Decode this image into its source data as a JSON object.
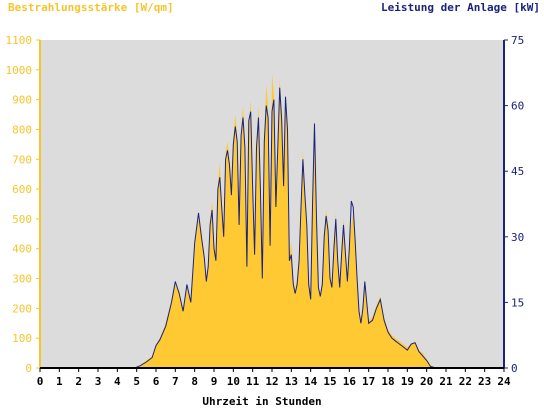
{
  "chart_data": {
    "type": "area",
    "title_left": "Bestrahlungsstärke [W/qm]",
    "title_right": "Leistung der Anlage [kW]",
    "xlabel": "Uhrzeit in Stunden",
    "xlim": [
      0,
      24
    ],
    "ylim_left": [
      0,
      1100
    ],
    "ylim_right": [
      0,
      75
    ],
    "x_ticks": [
      0,
      1,
      2,
      3,
      4,
      5,
      6,
      7,
      8,
      9,
      10,
      11,
      12,
      13,
      14,
      15,
      16,
      17,
      18,
      19,
      20,
      21,
      22,
      23,
      24
    ],
    "y_ticks_left": [
      0,
      100,
      200,
      300,
      400,
      500,
      600,
      700,
      800,
      900,
      1000,
      1100
    ],
    "y_ticks_right": [
      0,
      15,
      30,
      45,
      60,
      75
    ],
    "grid": false,
    "colors": {
      "plot_bg": "#dcdcdc",
      "area_fill": "#ffc933",
      "line": "#1a237e",
      "left_axis": "#f7c52b",
      "right_axis": "#1a237e"
    },
    "series": [
      {
        "axis": "left",
        "style": "area",
        "x": [
          0,
          4.9,
          5.2,
          5.5,
          5.8,
          6.0,
          6.2,
          6.5,
          6.8,
          7.0,
          7.2,
          7.4,
          7.6,
          7.8,
          8.0,
          8.1,
          8.2,
          8.35,
          8.5,
          8.6,
          8.7,
          8.8,
          8.9,
          9.0,
          9.1,
          9.2,
          9.3,
          9.4,
          9.5,
          9.6,
          9.7,
          9.8,
          9.9,
          10.0,
          10.1,
          10.2,
          10.3,
          10.4,
          10.5,
          10.6,
          10.7,
          10.8,
          10.9,
          11.0,
          11.1,
          11.2,
          11.3,
          11.4,
          11.5,
          11.6,
          11.7,
          11.8,
          11.9,
          12.0,
          12.1,
          12.2,
          12.3,
          12.4,
          12.5,
          12.6,
          12.7,
          12.8,
          12.9,
          13.0,
          13.1,
          13.2,
          13.3,
          13.4,
          13.5,
          13.6,
          13.7,
          13.8,
          13.9,
          14.0,
          14.1,
          14.2,
          14.3,
          14.4,
          14.5,
          14.6,
          14.7,
          14.8,
          14.9,
          15.0,
          15.1,
          15.2,
          15.3,
          15.4,
          15.5,
          15.6,
          15.7,
          15.8,
          15.9,
          16.0,
          16.1,
          16.2,
          16.3,
          16.4,
          16.5,
          16.6,
          16.7,
          16.8,
          17.0,
          17.2,
          17.4,
          17.6,
          17.8,
          18.0,
          18.2,
          18.4,
          18.6,
          18.8,
          19.0,
          19.2,
          19.4,
          19.6,
          19.8,
          20.0,
          20.2,
          20.5,
          24
        ],
        "values": [
          0,
          0,
          10,
          25,
          40,
          80,
          100,
          150,
          230,
          280,
          260,
          200,
          270,
          230,
          390,
          480,
          500,
          460,
          380,
          300,
          350,
          500,
          560,
          420,
          380,
          620,
          690,
          560,
          450,
          720,
          760,
          700,
          600,
          770,
          850,
          780,
          500,
          800,
          880,
          760,
          350,
          810,
          900,
          620,
          400,
          760,
          880,
          620,
          320,
          780,
          950,
          880,
          430,
          990,
          920,
          560,
          760,
          970,
          870,
          640,
          920,
          820,
          380,
          420,
          300,
          260,
          300,
          380,
          560,
          730,
          600,
          500,
          300,
          240,
          600,
          830,
          520,
          280,
          250,
          300,
          450,
          530,
          480,
          320,
          280,
          420,
          520,
          380,
          280,
          400,
          500,
          400,
          300,
          420,
          480,
          520,
          450,
          320,
          200,
          160,
          220,
          300,
          160,
          170,
          210,
          240,
          170,
          130,
          110,
          100,
          90,
          80,
          70,
          80,
          90,
          60,
          50,
          30,
          10,
          0,
          0
        ]
      },
      {
        "axis": "left",
        "style": "line",
        "x": [
          0,
          4.9,
          5.2,
          5.5,
          5.8,
          6.0,
          6.2,
          6.5,
          6.8,
          7.0,
          7.2,
          7.4,
          7.6,
          7.8,
          8.0,
          8.1,
          8.2,
          8.35,
          8.5,
          8.6,
          8.7,
          8.8,
          8.9,
          9.0,
          9.1,
          9.2,
          9.3,
          9.4,
          9.5,
          9.6,
          9.7,
          9.8,
          9.9,
          10.0,
          10.1,
          10.2,
          10.3,
          10.4,
          10.5,
          10.6,
          10.7,
          10.8,
          10.9,
          11.0,
          11.1,
          11.2,
          11.3,
          11.4,
          11.5,
          11.6,
          11.7,
          11.8,
          11.9,
          12.0,
          12.1,
          12.2,
          12.3,
          12.4,
          12.5,
          12.6,
          12.7,
          12.8,
          12.9,
          13.0,
          13.1,
          13.2,
          13.3,
          13.4,
          13.5,
          13.6,
          13.7,
          13.8,
          13.9,
          14.0,
          14.1,
          14.2,
          14.3,
          14.4,
          14.5,
          14.6,
          14.7,
          14.8,
          14.9,
          15.0,
          15.1,
          15.2,
          15.3,
          15.4,
          15.5,
          15.6,
          15.7,
          15.8,
          15.9,
          16.0,
          16.1,
          16.2,
          16.3,
          16.4,
          16.5,
          16.6,
          16.7,
          16.8,
          17.0,
          17.2,
          17.4,
          17.6,
          17.8,
          18.0,
          18.2,
          18.4,
          18.6,
          18.8,
          19.0,
          19.2,
          19.4,
          19.6,
          19.8,
          20.0,
          20.2,
          20.5,
          24
        ],
        "values": [
          0,
          0,
          8,
          20,
          35,
          75,
          95,
          140,
          220,
          290,
          250,
          190,
          280,
          220,
          420,
          470,
          520,
          440,
          370,
          290,
          340,
          480,
          530,
          400,
          360,
          600,
          640,
          540,
          440,
          700,
          730,
          680,
          580,
          750,
          810,
          760,
          480,
          780,
          840,
          740,
          340,
          830,
          860,
          600,
          380,
          740,
          840,
          600,
          300,
          760,
          880,
          840,
          410,
          860,
          900,
          540,
          740,
          940,
          830,
          610,
          910,
          800,
          360,
          380,
          280,
          250,
          280,
          360,
          540,
          700,
          580,
          480,
          280,
          230,
          560,
          820,
          500,
          270,
          240,
          280,
          440,
          510,
          460,
          300,
          270,
          400,
          500,
          360,
          270,
          380,
          480,
          380,
          290,
          400,
          560,
          540,
          430,
          300,
          190,
          150,
          200,
          290,
          150,
          160,
          200,
          230,
          160,
          120,
          100,
          90,
          80,
          70,
          60,
          80,
          85,
          55,
          40,
          25,
          5,
          0,
          0
        ]
      }
    ]
  }
}
